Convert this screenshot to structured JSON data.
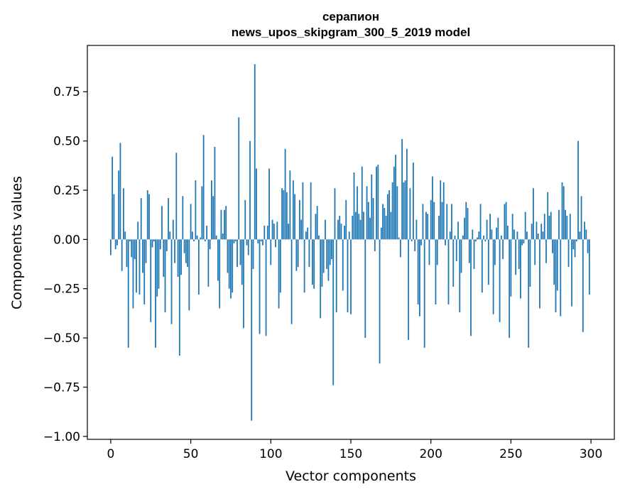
{
  "chart_data": {
    "type": "bar",
    "title_line1": "серапион",
    "title_line2": "news_upos_skipgram_300_5_2019 model",
    "xlabel": "Vector components",
    "ylabel": "Components values",
    "xlim": [
      -14.6,
      314.6
    ],
    "ylim": [
      -1.015,
      0.985
    ],
    "x_ticks": [
      0,
      50,
      100,
      150,
      200,
      250,
      300
    ],
    "y_ticks": [
      -1.0,
      -0.75,
      -0.5,
      -0.25,
      0.0,
      0.25,
      0.5,
      0.75
    ],
    "y_tick_labels": [
      "−1.00",
      "−0.75",
      "−0.50",
      "−0.25",
      "0.00",
      "0.25",
      "0.50",
      "0.75"
    ],
    "bar_color": "#1f77b4",
    "grid": false,
    "values": [
      -0.08,
      0.42,
      0.23,
      -0.05,
      -0.03,
      0.35,
      0.49,
      -0.16,
      0.26,
      0.04,
      -0.14,
      -0.55,
      -0.01,
      -0.09,
      -0.35,
      -0.1,
      -0.27,
      0.09,
      -0.28,
      0.21,
      -0.17,
      -0.33,
      -0.12,
      0.25,
      0.23,
      -0.42,
      -0.04,
      -0.01,
      -0.55,
      -0.29,
      -0.25,
      -0.05,
      0.17,
      -0.19,
      -0.37,
      -0.06,
      0.21,
      0.04,
      -0.43,
      0.1,
      -0.12,
      0.44,
      -0.19,
      -0.59,
      -0.18,
      0.22,
      -0.07,
      -0.12,
      -0.14,
      -0.36,
      0.18,
      0.04,
      -0.01,
      0.3,
      0.02,
      -0.28,
      0.01,
      0.27,
      0.53,
      -0.01,
      0.07,
      -0.24,
      -0.05,
      0.3,
      0.22,
      0.47,
      0.02,
      -0.21,
      -0.35,
      0.15,
      0.03,
      0.15,
      0.17,
      -0.17,
      -0.25,
      -0.3,
      -0.27,
      -0.02,
      -0.01,
      -0.14,
      0.62,
      -0.13,
      -0.23,
      -0.45,
      0.2,
      -0.03,
      -0.08,
      0.5,
      -0.92,
      -0.15,
      0.89,
      0.36,
      -0.02,
      -0.48,
      -0.01,
      -0.03,
      0.07,
      -0.49,
      0.07,
      0.36,
      -0.13,
      0.1,
      0.08,
      -0.04,
      0.09,
      -0.35,
      -0.27,
      0.26,
      0.25,
      0.46,
      0.24,
      0.08,
      0.35,
      -0.43,
      0.3,
      0.23,
      -0.16,
      -0.14,
      0.2,
      0.1,
      0.29,
      -0.27,
      0.04,
      0.06,
      -0.14,
      0.29,
      -0.23,
      -0.25,
      0.13,
      0.17,
      0.02,
      -0.4,
      -0.24,
      -0.17,
      0.1,
      -0.15,
      -0.21,
      -0.13,
      -0.1,
      -0.74,
      0.26,
      -0.37,
      0.1,
      0.12,
      0.08,
      -0.26,
      0.07,
      0.2,
      -0.37,
      0.04,
      -0.38,
      0.12,
      0.34,
      0.14,
      0.27,
      0.13,
      0.1,
      0.37,
      0.14,
      -0.5,
      0.27,
      0.19,
      0.11,
      0.33,
      0.21,
      -0.06,
      0.37,
      0.38,
      -0.63,
      0.06,
      0.18,
      0.16,
      0.12,
      0.23,
      0.25,
      0.14,
      0.29,
      0.37,
      0.43,
      0.27,
      0.01,
      -0.09,
      0.51,
      0.29,
      0.3,
      0.46,
      -0.51,
      0.26,
      -0.01,
      0.39,
      -0.06,
      0.1,
      -0.33,
      -0.39,
      -0.03,
      0.18,
      -0.55,
      0.14,
      0.13,
      -0.13,
      0.2,
      0.32,
      0.19,
      -0.33,
      -0.13,
      0.12,
      0.3,
      0.19,
      0.29,
      -0.03,
      0.18,
      -0.33,
      0.04,
      0.18,
      -0.24,
      0.02,
      -0.11,
      0.09,
      -0.37,
      -0.17,
      0.02,
      0.11,
      0.19,
      0.16,
      -0.12,
      -0.49,
      0.05,
      -0.15,
      -0.01,
      0.01,
      0.04,
      0.18,
      -0.27,
      0.02,
      -0.01,
      0.1,
      -0.23,
      0.13,
      0.05,
      -0.38,
      -0.13,
      0.06,
      0.11,
      -0.42,
      0.02,
      -0.1,
      0.18,
      0.19,
      0.07,
      -0.5,
      -0.29,
      0.13,
      0.05,
      -0.18,
      0.04,
      -0.15,
      -0.3,
      -0.03,
      -0.02,
      0.14,
      0.04,
      -0.55,
      -0.24,
      0.08,
      0.26,
      -0.13,
      0.09,
      0.03,
      -0.35,
      0.08,
      0.04,
      0.13,
      -0.12,
      0.24,
      0.12,
      0.14,
      -0.07,
      -0.23,
      -0.37,
      -0.26,
      0.15,
      -0.39,
      0.29,
      0.27,
      0.15,
      0.12,
      -0.14,
      0.13,
      -0.34,
      -0.05,
      -0.09,
      -0.01,
      0.5,
      0.04,
      0.22,
      -0.47,
      0.09,
      0.05,
      -0.07,
      -0.28
    ],
    "note_keys": []
  }
}
